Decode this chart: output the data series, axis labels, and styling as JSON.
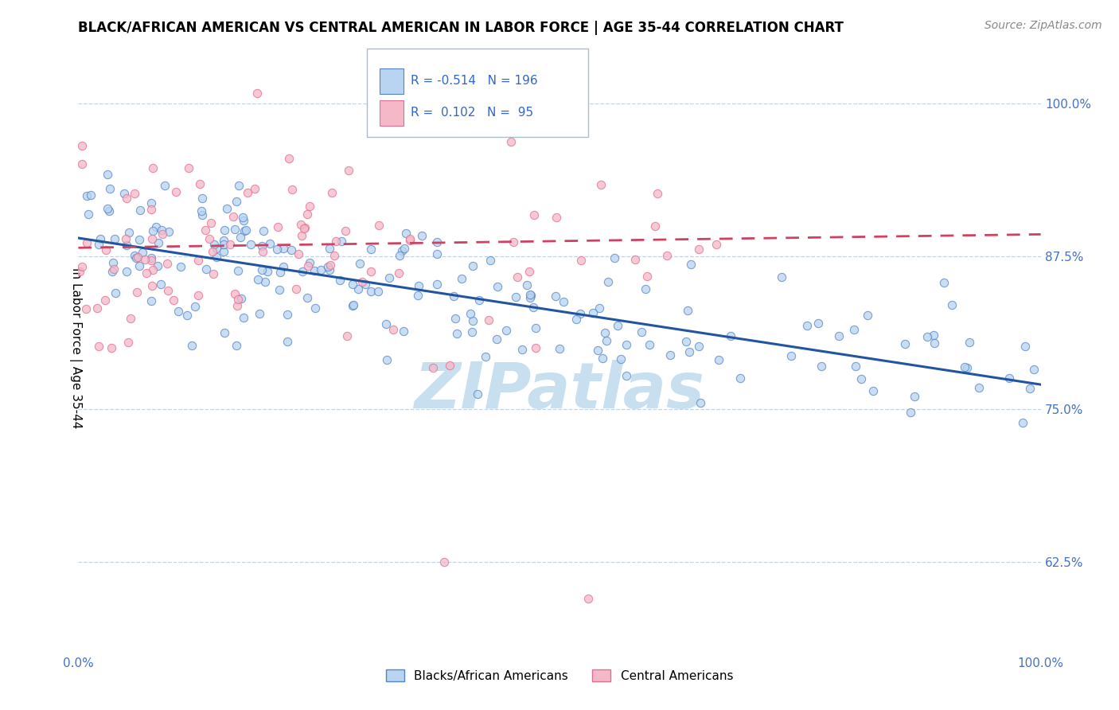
{
  "title": "BLACK/AFRICAN AMERICAN VS CENTRAL AMERICAN IN LABOR FORCE | AGE 35-44 CORRELATION CHART",
  "source": "Source: ZipAtlas.com",
  "ylabel": "In Labor Force | Age 35-44",
  "xlim": [
    0.0,
    1.0
  ],
  "ylim": [
    0.55,
    1.05
  ],
  "yticks": [
    0.625,
    0.75,
    0.875,
    1.0
  ],
  "ytick_labels": [
    "62.5%",
    "75.0%",
    "87.5%",
    "100.0%"
  ],
  "xtick_labels": [
    "0.0%",
    "100.0%"
  ],
  "blue_R": -0.514,
  "blue_N": 196,
  "pink_R": 0.102,
  "pink_N": 95,
  "blue_scatter_color": "#b8d4f0",
  "blue_edge_color": "#5585c8",
  "pink_scatter_color": "#f4b8c8",
  "pink_edge_color": "#e07090",
  "blue_line_color": "#2255a0",
  "pink_line_color": "#d04060",
  "watermark": "ZIPatlas",
  "watermark_color": "#c8dff0",
  "legend_blue_label": "Blacks/African Americans",
  "legend_pink_label": "Central Americans",
  "title_fontsize": 12,
  "axis_label_fontsize": 11,
  "tick_fontsize": 11,
  "source_fontsize": 10,
  "blue_line_start_y": 0.89,
  "blue_line_end_y": 0.77,
  "pink_line_start_y": 0.882,
  "pink_line_end_y": 0.893
}
